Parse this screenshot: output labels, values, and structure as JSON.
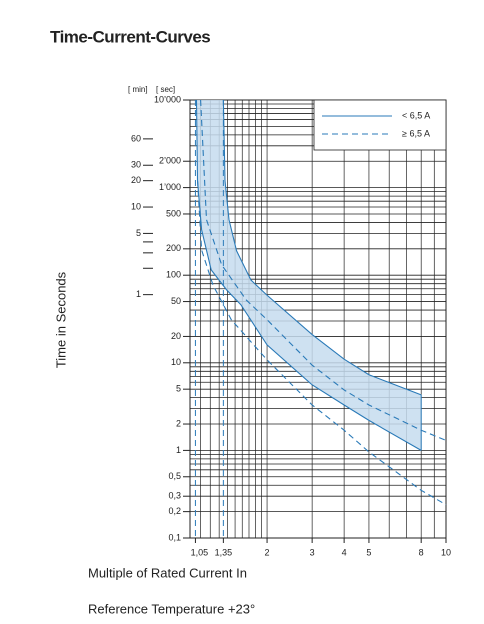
{
  "chart_data": {
    "type": "line",
    "title": "Time-Current-Curves",
    "xlabel": "Multiple of Rated Current In",
    "ylabel": "Time in Seconds",
    "y_unit_label": "[ sec]",
    "y2_unit_label": "[ min]",
    "footnote": "Reference Temperature +23°",
    "xscale": "log",
    "yscale": "log",
    "grid": true,
    "legend": "upper right",
    "xlim": [
      1,
      10
    ],
    "ylim": [
      0.1,
      10000
    ],
    "y2lim": [
      0.001667,
      166.7
    ],
    "xticks": [
      {
        "value": 1.05,
        "label": "1,05"
      },
      {
        "value": 1.35,
        "label": "1,35"
      },
      2,
      3,
      4,
      5,
      8,
      10
    ],
    "x_reference_lines": [
      1.05,
      1.35
    ],
    "yticks": [
      {
        "value": 0.1,
        "label": "0,1"
      },
      {
        "value": 0.2,
        "label": "0,2"
      },
      {
        "value": 0.3,
        "label": "0,3"
      },
      {
        "value": 0.5,
        "label": "0,5"
      },
      1,
      2,
      5,
      10,
      20,
      50,
      100,
      200,
      500,
      {
        "value": 1000,
        "label": "1’000"
      },
      {
        "value": 2000,
        "label": "2’000"
      },
      {
        "value": 10000,
        "label": "10’000"
      }
    ],
    "y2ticks": [
      1,
      5,
      10,
      20,
      30,
      60
    ],
    "y2minor_ticks": [
      2,
      3,
      4
    ],
    "series": [
      {
        "name": "< 6,5 A",
        "color": "#2a7ab8",
        "fill": "#c5dcef",
        "style": "solid",
        "bounds": [
          {
            "x": [
              1.35,
              1.37,
              1.42,
              1.52,
              1.73,
              2,
              3,
              4,
              5,
              8
            ],
            "values": [
              10000,
              1200,
              430,
              190,
              88,
              59,
              21,
              11,
              7.3,
              4.3
            ]
          },
          {
            "x": [
              1.06,
              1.07,
              1.11,
              1.21,
              1.39,
              1.58,
              2,
              3,
              4,
              5,
              8
            ],
            "values": [
              10000,
              1200,
              330,
              115,
              68,
              46,
              16,
              5.6,
              3.3,
              2.2,
              1
            ]
          }
        ]
      },
      {
        "name": "≥ 6,5 A",
        "color": "#2a7ab8",
        "style": "dashed",
        "bounds": [
          {
            "x": [
              1.1,
              1.16,
              1.33,
              1.66,
              2,
              3,
              4,
              5,
              8,
              10
            ],
            "values": [
              10000,
              430,
              131,
              52,
              31,
              9.4,
              4.9,
              3.3,
              1.7,
              1.3
            ]
          },
          {
            "x": [
              1.07,
              1.11,
              1.23,
              1.45,
              2,
              3,
              4,
              5,
              8,
              10
            ],
            "values": [
              1200,
              194,
              77,
              31,
              10.8,
              3.3,
              1.7,
              0.96,
              0.35,
              0.24
            ]
          }
        ]
      }
    ]
  }
}
